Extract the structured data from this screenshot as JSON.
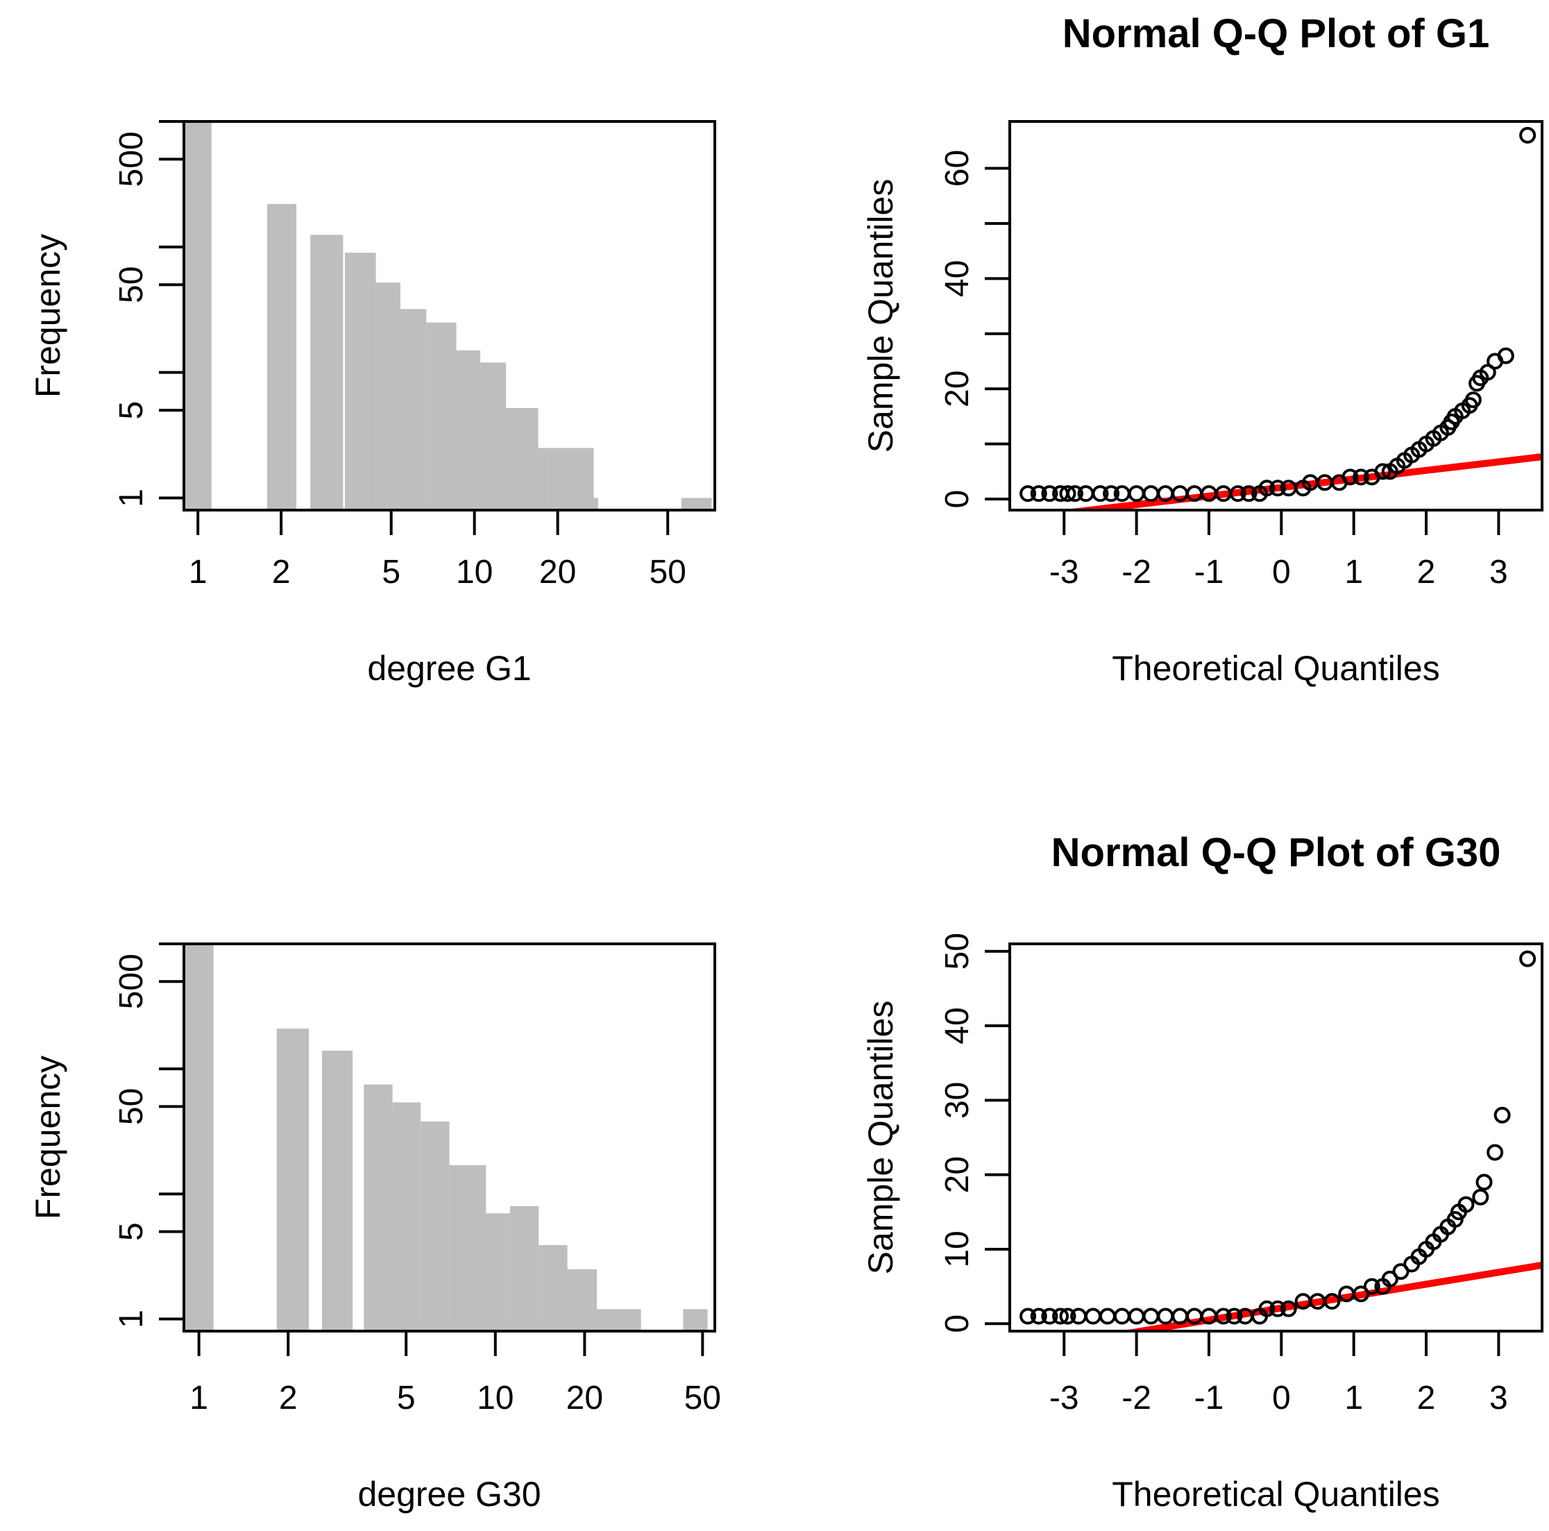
{
  "colors": {
    "bar": "#bebebe",
    "line": "#ff0000",
    "axis": "#000000",
    "point": "#000000"
  },
  "chart_data": [
    {
      "type": "bar",
      "title": "",
      "xlabel": "degree G1",
      "ylabel": "Frequency",
      "x_scale": "log",
      "y_scale": "log",
      "xlim": [
        0.89,
        74
      ],
      "ylim": [
        0.8,
        1000
      ],
      "xticks": [
        1,
        2,
        5,
        10,
        20,
        50
      ],
      "xtick_labels": [
        "1",
        "2",
        "5",
        "10",
        "20",
        "50"
      ],
      "yticks": [
        1,
        5,
        50,
        500
      ],
      "ytick_labels": [
        "1",
        "5",
        "50",
        "500"
      ],
      "yticks_minor": [
        10,
        100,
        1000
      ],
      "bars": [
        {
          "x0": 0.89,
          "x1": 1.12,
          "value": 1000
        },
        {
          "x0": 1.78,
          "x1": 2.27,
          "value": 220
        },
        {
          "x0": 2.55,
          "x1": 3.35,
          "value": 125
        },
        {
          "x0": 3.4,
          "x1": 4.4,
          "value": 90
        },
        {
          "x0": 4.4,
          "x1": 5.4,
          "value": 52
        },
        {
          "x0": 5.4,
          "x1": 6.7,
          "value": 32
        },
        {
          "x0": 6.7,
          "x1": 8.6,
          "value": 25
        },
        {
          "x0": 8.6,
          "x1": 10.5,
          "value": 15
        },
        {
          "x0": 10.5,
          "x1": 13.0,
          "value": 12
        },
        {
          "x0": 13.0,
          "x1": 17.0,
          "value": 5.2
        },
        {
          "x0": 17.0,
          "x1": 18.5,
          "value": 2.5
        },
        {
          "x0": 18.5,
          "x1": 27.0,
          "value": 2.5
        },
        {
          "x0": 27.0,
          "x1": 28.0,
          "value": 1.0
        },
        {
          "x0": 56.0,
          "x1": 72.0,
          "value": 1.0
        }
      ]
    },
    {
      "type": "scatter",
      "title": "Normal Q-Q Plot of G1",
      "xlabel": "Theoretical Quantiles",
      "ylabel": "Sample Quantiles",
      "xlim": [
        -3.75,
        3.6
      ],
      "ylim": [
        -2,
        68.5
      ],
      "xticks": [
        -3,
        -2,
        -1,
        0,
        1,
        2,
        3
      ],
      "xtick_labels": [
        "-3",
        "-2",
        "-1",
        "0",
        "1",
        "2",
        "3"
      ],
      "yticks": [
        0,
        20,
        40,
        60
      ],
      "ytick_labels": [
        "0",
        "20",
        "40",
        "60"
      ],
      "yticks_minor": [
        10,
        30,
        50
      ],
      "points": [
        [
          -3.5,
          1
        ],
        [
          -3.2,
          1
        ],
        [
          -3.05,
          1
        ],
        [
          -2.95,
          1
        ],
        [
          -2.85,
          1
        ],
        [
          -2.7,
          1
        ],
        [
          -2.5,
          1
        ],
        [
          -2.2,
          1
        ],
        [
          -1.8,
          1
        ],
        [
          -1.4,
          1
        ],
        [
          -1.0,
          1
        ],
        [
          -0.6,
          1
        ],
        [
          -0.3,
          1
        ],
        [
          -0.2,
          2
        ],
        [
          0.1,
          2
        ],
        [
          0.3,
          2
        ],
        [
          0.4,
          3
        ],
        [
          0.6,
          3
        ],
        [
          0.8,
          3
        ],
        [
          0.95,
          4
        ],
        [
          1.1,
          4
        ],
        [
          1.25,
          4
        ],
        [
          1.4,
          5
        ],
        [
          1.5,
          5
        ],
        [
          1.6,
          6
        ],
        [
          1.7,
          7
        ],
        [
          1.8,
          8
        ],
        [
          1.9,
          9
        ],
        [
          2.0,
          10
        ],
        [
          2.1,
          11
        ],
        [
          2.2,
          12
        ],
        [
          2.3,
          13
        ],
        [
          2.35,
          14
        ],
        [
          2.4,
          15
        ],
        [
          2.5,
          16
        ],
        [
          2.6,
          17
        ],
        [
          2.65,
          18
        ],
        [
          2.7,
          21
        ],
        [
          2.75,
          22
        ],
        [
          2.85,
          23
        ],
        [
          2.95,
          25
        ],
        [
          3.1,
          26
        ],
        [
          3.4,
          66
        ]
      ],
      "line": {
        "intercept": 2.1,
        "slope": 1.55
      }
    },
    {
      "type": "bar",
      "title": "",
      "xlabel": "degree G30",
      "ylabel": "Frequency",
      "x_scale": "log",
      "y_scale": "log",
      "xlim": [
        0.89,
        55
      ],
      "ylim": [
        0.8,
        1000
      ],
      "xticks": [
        1,
        2,
        5,
        10,
        20,
        50
      ],
      "xtick_labels": [
        "1",
        "2",
        "5",
        "10",
        "20",
        "50"
      ],
      "yticks": [
        1,
        5,
        50,
        500
      ],
      "ytick_labels": [
        "1",
        "5",
        "50",
        "500"
      ],
      "yticks_minor": [
        10,
        100,
        1000
      ],
      "bars": [
        {
          "x0": 0.89,
          "x1": 1.12,
          "value": 1000
        },
        {
          "x0": 1.83,
          "x1": 2.35,
          "value": 210
        },
        {
          "x0": 2.6,
          "x1": 3.3,
          "value": 140
        },
        {
          "x0": 3.6,
          "x1": 4.5,
          "value": 75
        },
        {
          "x0": 4.5,
          "x1": 5.6,
          "value": 54
        },
        {
          "x0": 5.6,
          "x1": 7.0,
          "value": 38
        },
        {
          "x0": 7.0,
          "x1": 9.3,
          "value": 17
        },
        {
          "x0": 9.3,
          "x1": 11.2,
          "value": 7.0
        },
        {
          "x0": 11.2,
          "x1": 14.0,
          "value": 8.0
        },
        {
          "x0": 14.0,
          "x1": 17.5,
          "value": 3.9
        },
        {
          "x0": 17.5,
          "x1": 22.0,
          "value": 2.5
        },
        {
          "x0": 22.0,
          "x1": 31.0,
          "value": 1.2
        },
        {
          "x0": 43.0,
          "x1": 52.0,
          "value": 1.2
        }
      ]
    },
    {
      "type": "scatter",
      "title": "Normal Q-Q Plot of G30",
      "xlabel": "Theoretical Quantiles",
      "ylabel": "Sample Quantiles",
      "xlim": [
        -3.75,
        3.6
      ],
      "ylim": [
        -1,
        51
      ],
      "xticks": [
        -3,
        -2,
        -1,
        0,
        1,
        2,
        3
      ],
      "xtick_labels": [
        "-3",
        "-2",
        "-1",
        "0",
        "1",
        "2",
        "3"
      ],
      "yticks": [
        0,
        10,
        20,
        30,
        40,
        50
      ],
      "ytick_labels": [
        "0",
        "10",
        "20",
        "30",
        "40",
        "50"
      ],
      "yticks_minor": [],
      "points": [
        [
          -3.5,
          1
        ],
        [
          -3.2,
          1
        ],
        [
          -3.05,
          1
        ],
        [
          -2.95,
          1
        ],
        [
          -2.8,
          1
        ],
        [
          -2.6,
          1
        ],
        [
          -2.4,
          1
        ],
        [
          -2.0,
          1
        ],
        [
          -1.6,
          1
        ],
        [
          -1.2,
          1
        ],
        [
          -0.8,
          1
        ],
        [
          -0.5,
          1
        ],
        [
          -0.3,
          1
        ],
        [
          -0.2,
          2
        ],
        [
          0.1,
          2
        ],
        [
          0.3,
          3
        ],
        [
          0.5,
          3
        ],
        [
          0.7,
          3
        ],
        [
          0.9,
          4
        ],
        [
          1.1,
          4
        ],
        [
          1.25,
          5
        ],
        [
          1.4,
          5
        ],
        [
          1.5,
          6
        ],
        [
          1.65,
          7
        ],
        [
          1.8,
          8
        ],
        [
          1.9,
          9
        ],
        [
          2.0,
          10
        ],
        [
          2.1,
          11
        ],
        [
          2.2,
          12
        ],
        [
          2.3,
          13
        ],
        [
          2.4,
          14
        ],
        [
          2.45,
          15
        ],
        [
          2.55,
          16
        ],
        [
          2.75,
          17
        ],
        [
          2.8,
          19
        ],
        [
          2.95,
          23
        ],
        [
          3.05,
          28
        ],
        [
          3.4,
          49
        ]
      ],
      "line": {
        "intercept": 2.1,
        "slope": 1.6
      }
    }
  ]
}
